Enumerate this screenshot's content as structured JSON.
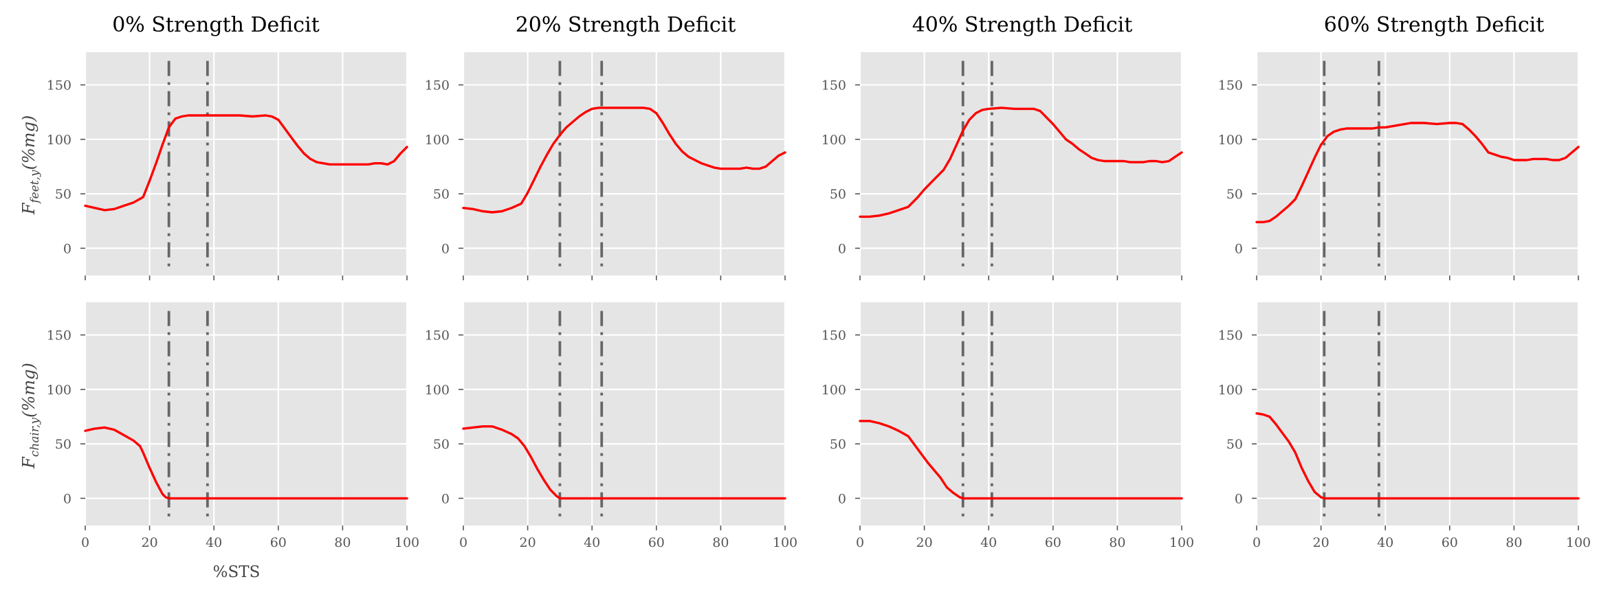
{
  "figure": {
    "panel_titles": [
      "0% Strength Deficit",
      "20% Strength Deficit",
      "40% Strength Deficit",
      "60% Strength Deficit"
    ],
    "xlabel": "%STS",
    "ylabel_top": {
      "base": "F",
      "sub": "feet,y",
      "unit": "(%mg)"
    },
    "ylabel_bottom": {
      "base": "F",
      "sub": "chair,y",
      "unit": "(%mg)"
    },
    "colors": {
      "series": "#ff0000",
      "vline": "#666666",
      "background": "#e5e5e5",
      "grid": "#ffffff"
    }
  },
  "chart_data": [
    {
      "type": "line",
      "title": "0% Strength Deficit",
      "xlabel": "",
      "ylabel": "F_feet,y (%mg)",
      "xlim": [
        0,
        100
      ],
      "ylim": [
        -25,
        180
      ],
      "xticks": [
        0,
        20,
        40,
        60,
        80,
        100
      ],
      "yticks": [
        0,
        50,
        100,
        150
      ],
      "grid": true,
      "vlines": [
        26,
        38
      ],
      "x": [
        0,
        3,
        6,
        9,
        12,
        15,
        18,
        20,
        22,
        24,
        26,
        28,
        30,
        32,
        34,
        36,
        38,
        40,
        44,
        48,
        52,
        56,
        58,
        60,
        62,
        64,
        66,
        68,
        70,
        72,
        74,
        76,
        78,
        80,
        82,
        84,
        86,
        88,
        90,
        92,
        94,
        96,
        98,
        100
      ],
      "y": [
        39,
        37,
        35,
        36,
        39,
        42,
        47,
        62,
        78,
        95,
        111,
        119,
        121,
        122,
        122,
        122,
        122,
        122,
        122,
        122,
        121,
        122,
        121,
        118,
        110,
        102,
        94,
        87,
        82,
        79,
        78,
        77,
        77,
        77,
        77,
        77,
        77,
        77,
        78,
        78,
        77,
        80,
        87,
        93
      ]
    },
    {
      "type": "line",
      "title": "20% Strength Deficit",
      "xlabel": "",
      "ylabel": "",
      "xlim": [
        0,
        100
      ],
      "ylim": [
        -25,
        180
      ],
      "xticks": [
        0,
        20,
        40,
        60,
        80,
        100
      ],
      "yticks": [
        0,
        50,
        100,
        150
      ],
      "grid": true,
      "vlines": [
        30,
        43
      ],
      "x": [
        0,
        3,
        6,
        9,
        12,
        15,
        18,
        20,
        22,
        24,
        26,
        28,
        30,
        32,
        34,
        36,
        38,
        40,
        42,
        44,
        48,
        52,
        56,
        58,
        60,
        62,
        64,
        66,
        68,
        70,
        72,
        74,
        76,
        78,
        80,
        82,
        84,
        86,
        88,
        90,
        92,
        94,
        96,
        98,
        100
      ],
      "y": [
        37,
        36,
        34,
        33,
        34,
        37,
        41,
        51,
        63,
        75,
        86,
        96,
        104,
        111,
        116,
        121,
        125,
        128,
        129,
        129,
        129,
        129,
        129,
        128,
        124,
        115,
        105,
        96,
        89,
        84,
        81,
        78,
        76,
        74,
        73,
        73,
        73,
        73,
        74,
        73,
        73,
        75,
        80,
        85,
        88
      ]
    },
    {
      "type": "line",
      "title": "40% Strength Deficit",
      "xlabel": "",
      "ylabel": "",
      "xlim": [
        0,
        100
      ],
      "ylim": [
        -25,
        180
      ],
      "xticks": [
        0,
        20,
        40,
        60,
        80,
        100
      ],
      "yticks": [
        0,
        50,
        100,
        150
      ],
      "grid": true,
      "vlines": [
        32,
        41
      ],
      "x": [
        0,
        3,
        6,
        9,
        12,
        15,
        18,
        20,
        22,
        24,
        26,
        28,
        30,
        32,
        34,
        36,
        38,
        40,
        44,
        48,
        52,
        54,
        56,
        58,
        60,
        62,
        64,
        66,
        68,
        70,
        72,
        74,
        76,
        78,
        80,
        82,
        84,
        86,
        88,
        90,
        92,
        94,
        96,
        98,
        100
      ],
      "y": [
        29,
        29,
        30,
        32,
        35,
        38,
        47,
        54,
        60,
        66,
        72,
        82,
        95,
        108,
        118,
        124,
        127,
        128,
        129,
        128,
        128,
        128,
        126,
        120,
        114,
        107,
        100,
        96,
        91,
        87,
        83,
        81,
        80,
        80,
        80,
        80,
        79,
        79,
        79,
        80,
        80,
        79,
        80,
        84,
        88
      ]
    },
    {
      "type": "line",
      "title": "60% Strength Deficit",
      "xlabel": "",
      "ylabel": "",
      "xlim": [
        0,
        100
      ],
      "ylim": [
        -25,
        180
      ],
      "xticks": [
        0,
        20,
        40,
        60,
        80,
        100
      ],
      "yticks": [
        0,
        50,
        100,
        150
      ],
      "grid": true,
      "vlines": [
        21,
        38
      ],
      "x": [
        0,
        2,
        4,
        6,
        8,
        10,
        12,
        14,
        16,
        18,
        20,
        22,
        24,
        26,
        28,
        30,
        32,
        34,
        36,
        38,
        40,
        44,
        48,
        52,
        56,
        60,
        62,
        64,
        66,
        68,
        70,
        72,
        74,
        76,
        78,
        80,
        82,
        84,
        86,
        88,
        90,
        92,
        94,
        96,
        98,
        100
      ],
      "y": [
        24,
        24,
        25,
        29,
        34,
        39,
        45,
        57,
        70,
        83,
        95,
        103,
        107,
        109,
        110,
        110,
        110,
        110,
        110,
        111,
        111,
        113,
        115,
        115,
        114,
        115,
        115,
        114,
        109,
        103,
        96,
        88,
        86,
        84,
        83,
        81,
        81,
        81,
        82,
        82,
        82,
        81,
        81,
        83,
        88,
        93
      ]
    },
    {
      "type": "line",
      "title": "",
      "xlabel": "%STS",
      "ylabel": "F_chair,y (%mg)",
      "xlim": [
        0,
        100
      ],
      "ylim": [
        -25,
        180
      ],
      "xticks": [
        0,
        20,
        40,
        60,
        80,
        100
      ],
      "yticks": [
        0,
        50,
        100,
        150
      ],
      "grid": true,
      "vlines": [
        26,
        38
      ],
      "x": [
        0,
        3,
        6,
        9,
        12,
        15,
        17,
        18,
        20,
        22,
        24,
        25,
        26,
        28,
        30,
        100
      ],
      "y": [
        62,
        64,
        65,
        63,
        58,
        53,
        48,
        42,
        28,
        15,
        4,
        1,
        0,
        0,
        0,
        0
      ]
    },
    {
      "type": "line",
      "title": "",
      "xlabel": "",
      "ylabel": "",
      "xlim": [
        0,
        100
      ],
      "ylim": [
        -25,
        180
      ],
      "xticks": [
        0,
        20,
        40,
        60,
        80,
        100
      ],
      "yticks": [
        0,
        50,
        100,
        150
      ],
      "grid": true,
      "vlines": [
        30,
        43
      ],
      "x": [
        0,
        3,
        6,
        9,
        12,
        15,
        17,
        19,
        21,
        23,
        25,
        27,
        29,
        30,
        32,
        100
      ],
      "y": [
        64,
        65,
        66,
        66,
        63,
        59,
        55,
        48,
        38,
        27,
        17,
        8,
        2,
        0,
        0,
        0
      ]
    },
    {
      "type": "line",
      "title": "",
      "xlabel": "",
      "ylabel": "",
      "xlim": [
        0,
        100
      ],
      "ylim": [
        -25,
        180
      ],
      "xticks": [
        0,
        20,
        40,
        60,
        80,
        100
      ],
      "yticks": [
        0,
        50,
        100,
        150
      ],
      "grid": true,
      "vlines": [
        32,
        41
      ],
      "x": [
        0,
        3,
        6,
        9,
        12,
        15,
        17,
        19,
        21,
        23,
        25,
        27,
        29,
        31,
        32,
        34,
        100
      ],
      "y": [
        71,
        71,
        69,
        66,
        62,
        57,
        49,
        41,
        33,
        26,
        19,
        10,
        5,
        1,
        0,
        0,
        0
      ]
    },
    {
      "type": "line",
      "title": "",
      "xlabel": "",
      "ylabel": "",
      "xlim": [
        0,
        100
      ],
      "ylim": [
        -25,
        180
      ],
      "xticks": [
        0,
        20,
        40,
        60,
        80,
        100
      ],
      "yticks": [
        0,
        50,
        100,
        150
      ],
      "grid": true,
      "vlines": [
        21,
        38
      ],
      "x": [
        0,
        2,
        4,
        6,
        8,
        10,
        12,
        14,
        16,
        18,
        20,
        21,
        23,
        100
      ],
      "y": [
        78,
        77,
        75,
        68,
        60,
        52,
        42,
        28,
        16,
        6,
        1,
        0,
        0,
        0
      ]
    }
  ]
}
